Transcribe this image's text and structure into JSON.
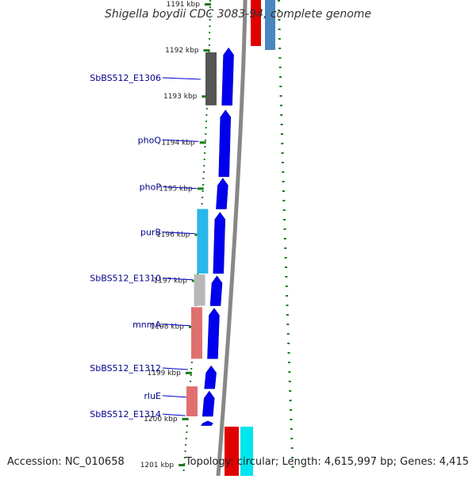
{
  "title": "Shigella boydii CDC 3083-94, complete genome",
  "footer": {
    "accession": "Accession: NC_010658",
    "stats": "Topology: circular; Length: 4,615,997 bp; Genes: 4,415"
  },
  "ruler_ticks": [
    {
      "label": "1191 kbp",
      "kbp": 1191
    },
    {
      "label": "1192 kbp",
      "kbp": 1192
    },
    {
      "label": "1193 kbp",
      "kbp": 1193
    },
    {
      "label": "1194 kbp",
      "kbp": 1194
    },
    {
      "label": "1195 kbp",
      "kbp": 1195
    },
    {
      "label": "1196 kbp",
      "kbp": 1196
    },
    {
      "label": "1197 kbp",
      "kbp": 1197
    },
    {
      "label": "1198 kbp",
      "kbp": 1198
    },
    {
      "label": "1199 kbp",
      "kbp": 1199
    },
    {
      "label": "1200 kbp",
      "kbp": 1200
    },
    {
      "label": "1201 kbp",
      "kbp": 1201
    }
  ],
  "gene_labels": [
    {
      "text": "SbBS512_E1306",
      "kbp": 1192.6
    },
    {
      "text": "phoQ",
      "kbp": 1193.95
    },
    {
      "text": "phoP",
      "kbp": 1194.97
    },
    {
      "text": "purB",
      "kbp": 1195.95
    },
    {
      "text": "SbBS512_E1310",
      "kbp": 1196.95
    },
    {
      "text": "mnmA",
      "kbp": 1197.95
    },
    {
      "text": "SbBS512_E1312",
      "kbp": 1198.9
    },
    {
      "text": "rluE",
      "kbp": 1199.5
    },
    {
      "text": "SbBS512_E1314",
      "kbp": 1199.9
    }
  ],
  "colors": {
    "cds_forward": "#0000ee",
    "outer_dots": "#1a7a1a",
    "backbone": "#888888",
    "cog_gray_dark": "#555555",
    "cog_cyan": "#29b6e8",
    "cog_gray_light": "#b8b8b8",
    "cog_salmon": "#e07070",
    "cog_red": "#e00000",
    "cog_blue_steel": "#4a86c0",
    "cog_aqua": "#00e5ee"
  }
}
